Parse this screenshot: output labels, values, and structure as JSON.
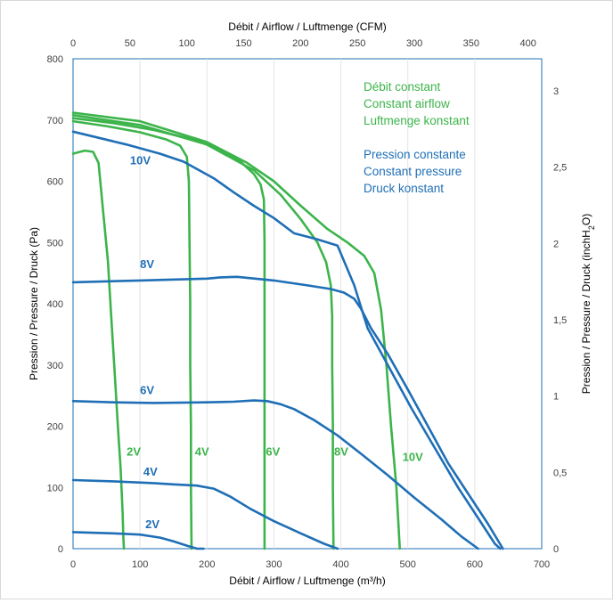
{
  "chart_data": {
    "type": "line",
    "x_axis": {
      "label": "Débit / Airflow / Luftmenge (m³/h)",
      "range": [
        0,
        700
      ],
      "ticks": [
        0,
        100,
        200,
        300,
        400,
        500,
        600,
        700
      ]
    },
    "x2_axis": {
      "label": "Débit / Airflow / Luftmenge (CFM)",
      "range": [
        0,
        412
      ],
      "ticks": [
        "0",
        "50",
        "100",
        "150",
        "200",
        "250",
        "300",
        "350",
        "400"
      ]
    },
    "y_axis": {
      "label": "Pression / Pressure / Druck (Pa)",
      "range": [
        0,
        800
      ],
      "ticks": [
        0,
        100,
        200,
        300,
        400,
        500,
        600,
        700,
        800
      ]
    },
    "y2_axis": {
      "label": "Pression / Pressure / Druck (inchH₂O)",
      "range": [
        0,
        3.21
      ],
      "ticks": [
        "0",
        "0,5",
        "1",
        "1,5",
        "2",
        "2,5",
        "3"
      ]
    },
    "grid": "vertical",
    "legend": [
      {
        "group": "green",
        "color": "#3cb44b",
        "lines": [
          "Débit constant",
          "Constant airflow",
          "Luftmenge konstant"
        ]
      },
      {
        "group": "blue",
        "color": "#1f6fb6",
        "lines": [
          "Pression constante",
          "Constant pressure",
          "Druck konstant"
        ]
      }
    ],
    "series": [
      {
        "name": "2V",
        "mode": "constant airflow",
        "color": "#3cb44b",
        "points": [
          [
            0,
            645
          ],
          [
            10,
            648
          ],
          [
            18,
            650
          ],
          [
            30,
            648
          ],
          [
            38,
            630
          ],
          [
            45,
            550
          ],
          [
            52,
            470
          ],
          [
            57,
            380
          ],
          [
            62,
            290
          ],
          [
            67,
            200
          ],
          [
            71,
            130
          ],
          [
            74,
            60
          ],
          [
            75,
            20
          ],
          [
            76,
            0
          ]
        ]
      },
      {
        "name": "4V",
        "mode": "constant airflow",
        "color": "#3cb44b",
        "points": [
          [
            0,
            698
          ],
          [
            50,
            690
          ],
          [
            100,
            680
          ],
          [
            140,
            668
          ],
          [
            160,
            658
          ],
          [
            170,
            640
          ],
          [
            173,
            600
          ],
          [
            174,
            500
          ],
          [
            175,
            400
          ],
          [
            175,
            300
          ],
          [
            176,
            200
          ],
          [
            176,
            100
          ],
          [
            177,
            0
          ]
        ]
      },
      {
        "name": "6V",
        "mode": "constant airflow",
        "color": "#3cb44b",
        "points": [
          [
            0,
            703
          ],
          [
            60,
            695
          ],
          [
            120,
            684
          ],
          [
            180,
            668
          ],
          [
            220,
            652
          ],
          [
            250,
            632
          ],
          [
            270,
            612
          ],
          [
            280,
            595
          ],
          [
            285,
            570
          ],
          [
            286,
            500
          ],
          [
            286,
            400
          ],
          [
            286,
            300
          ],
          [
            286,
            200
          ],
          [
            286,
            100
          ],
          [
            286,
            0
          ]
        ]
      },
      {
        "name": "8V",
        "mode": "constant airflow",
        "color": "#3cb44b",
        "points": [
          [
            0,
            708
          ],
          [
            100,
            692
          ],
          [
            200,
            660
          ],
          [
            270,
            618
          ],
          [
            310,
            578
          ],
          [
            340,
            538
          ],
          [
            365,
            500
          ],
          [
            378,
            468
          ],
          [
            385,
            430
          ],
          [
            387,
            380
          ],
          [
            387,
            300
          ],
          [
            388,
            200
          ],
          [
            388,
            100
          ],
          [
            389,
            0
          ]
        ]
      },
      {
        "name": "10V",
        "mode": "constant airflow",
        "color": "#3cb44b",
        "points": [
          [
            0,
            712
          ],
          [
            100,
            698
          ],
          [
            200,
            664
          ],
          [
            260,
            630
          ],
          [
            300,
            600
          ],
          [
            340,
            560
          ],
          [
            380,
            522
          ],
          [
            410,
            500
          ],
          [
            435,
            478
          ],
          [
            450,
            450
          ],
          [
            460,
            390
          ],
          [
            468,
            300
          ],
          [
            475,
            200
          ],
          [
            483,
            100
          ],
          [
            488,
            0
          ]
        ]
      },
      {
        "name": "2V",
        "mode": "constant pressure",
        "color": "#1f6fb6",
        "points": [
          [
            0,
            27
          ],
          [
            60,
            25
          ],
          [
            100,
            23
          ],
          [
            130,
            18
          ],
          [
            150,
            12
          ],
          [
            170,
            5
          ],
          [
            185,
            0
          ],
          [
            195,
            0
          ]
        ]
      },
      {
        "name": "4V",
        "mode": "constant pressure",
        "color": "#1f6fb6",
        "points": [
          [
            0,
            112
          ],
          [
            60,
            110
          ],
          [
            120,
            107
          ],
          [
            150,
            105
          ],
          [
            185,
            103
          ],
          [
            210,
            98
          ],
          [
            235,
            85
          ],
          [
            265,
            65
          ],
          [
            300,
            45
          ],
          [
            340,
            25
          ],
          [
            375,
            8
          ],
          [
            395,
            0
          ]
        ]
      },
      {
        "name": "6V",
        "mode": "constant pressure",
        "color": "#1f6fb6",
        "points": [
          [
            0,
            241
          ],
          [
            60,
            239
          ],
          [
            120,
            238
          ],
          [
            200,
            239
          ],
          [
            240,
            240
          ],
          [
            270,
            242
          ],
          [
            290,
            241
          ],
          [
            310,
            236
          ],
          [
            330,
            228
          ],
          [
            360,
            210
          ],
          [
            395,
            185
          ],
          [
            430,
            155
          ],
          [
            470,
            120
          ],
          [
            510,
            83
          ],
          [
            550,
            48
          ],
          [
            580,
            20
          ],
          [
            605,
            0
          ]
        ]
      },
      {
        "name": "8V",
        "mode": "constant pressure",
        "color": "#1f6fb6",
        "points": [
          [
            0,
            435
          ],
          [
            100,
            438
          ],
          [
            200,
            441
          ],
          [
            220,
            443
          ],
          [
            245,
            444
          ],
          [
            300,
            438
          ],
          [
            350,
            430
          ],
          [
            385,
            424
          ],
          [
            405,
            418
          ],
          [
            420,
            408
          ],
          [
            430,
            392
          ],
          [
            445,
            360
          ],
          [
            470,
            318
          ],
          [
            500,
            260
          ],
          [
            530,
            200
          ],
          [
            560,
            140
          ],
          [
            590,
            90
          ],
          [
            620,
            40
          ],
          [
            642,
            0
          ]
        ]
      },
      {
        "name": "10V",
        "mode": "constant pressure",
        "color": "#1f6fb6",
        "points": [
          [
            0,
            681
          ],
          [
            80,
            660
          ],
          [
            130,
            645
          ],
          [
            165,
            632
          ],
          [
            185,
            620
          ],
          [
            210,
            605
          ],
          [
            240,
            582
          ],
          [
            270,
            560
          ],
          [
            300,
            540
          ],
          [
            330,
            515
          ],
          [
            365,
            505
          ],
          [
            395,
            495
          ],
          [
            420,
            430
          ],
          [
            440,
            360
          ],
          [
            470,
            300
          ],
          [
            505,
            230
          ],
          [
            540,
            165
          ],
          [
            575,
            100
          ],
          [
            605,
            50
          ],
          [
            630,
            8
          ],
          [
            638,
            0
          ]
        ]
      }
    ]
  }
}
